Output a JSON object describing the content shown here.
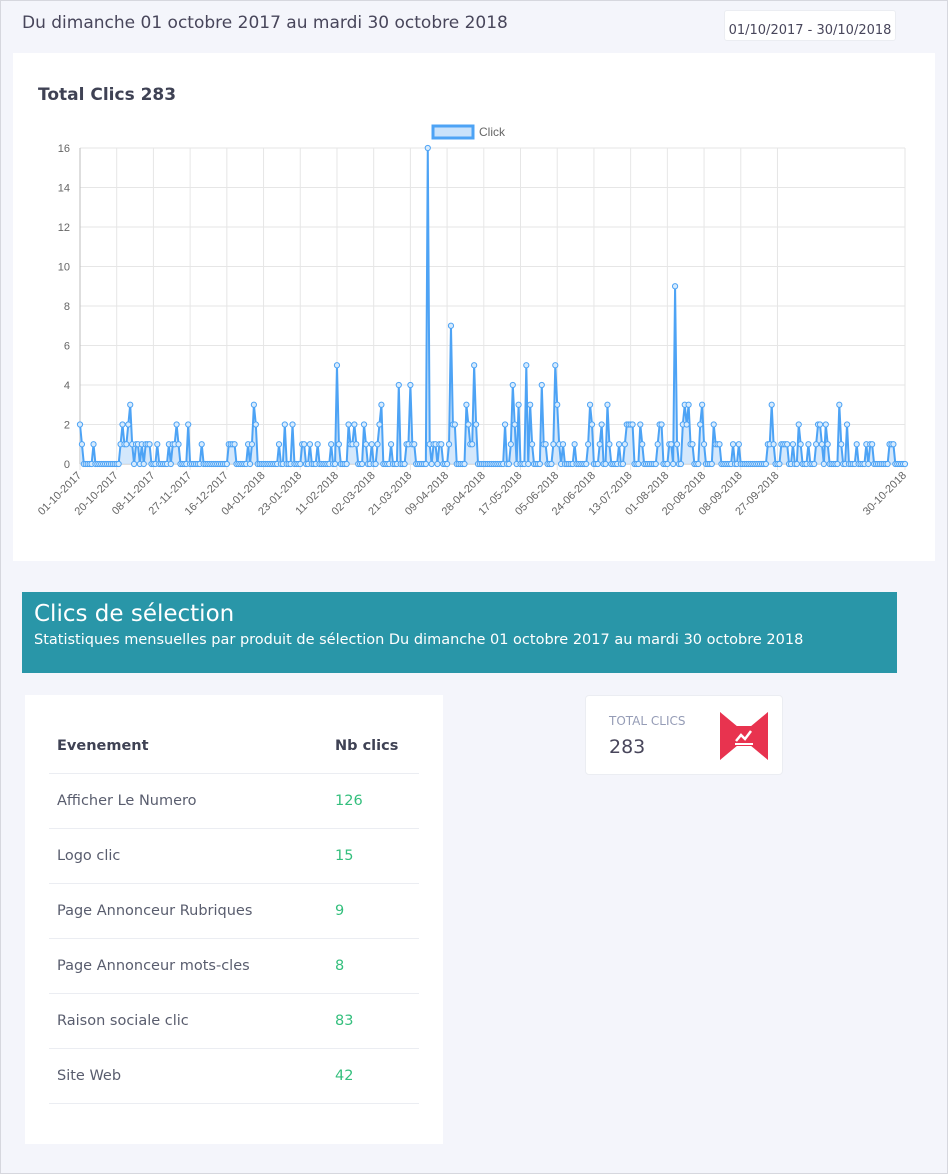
{
  "header": {
    "title": "Du dimanche 01 octobre 2017 au mardi 30 octobre 2018",
    "date_range": "01/10/2017 - 30/10/2018"
  },
  "chart_card": {
    "title": "Total Clics 283"
  },
  "chart_data": {
    "type": "line",
    "legend": {
      "label": "Click",
      "position": "top"
    },
    "ylim": [
      0,
      16
    ],
    "yticks": [
      0,
      2,
      4,
      6,
      8,
      10,
      12,
      14,
      16
    ],
    "x_tick_labels": [
      "01-10-2017",
      "20-10-2017",
      "08-11-2017",
      "27-11-2017",
      "16-12-2017",
      "04-01-2018",
      "23-01-2018",
      "11-02-2018",
      "02-03-2018",
      "21-03-2018",
      "09-04-2018",
      "28-04-2018",
      "17-05-2018",
      "05-06-2018",
      "24-06-2018",
      "13-07-2018",
      "01-08-2018",
      "20-08-2018",
      "08-09-2018",
      "27-09-2018",
      "30-10-2018"
    ],
    "grid": true,
    "colors": {
      "line": "#4da3f5",
      "fill": "#c9e2fb"
    },
    "series": [
      {
        "name": "Click",
        "x_start": "01-10-2017",
        "x_end": "30-10-2018",
        "values": [
          2,
          1,
          0,
          0,
          0,
          0,
          0,
          1,
          0,
          0,
          0,
          0,
          0,
          0,
          0,
          0,
          0,
          0,
          0,
          0,
          0,
          1,
          2,
          1,
          1,
          2,
          3,
          1,
          0,
          1,
          1,
          0,
          1,
          0,
          1,
          1,
          1,
          0,
          0,
          0,
          1,
          0,
          0,
          0,
          0,
          0,
          1,
          0,
          1,
          1,
          2,
          1,
          0,
          0,
          0,
          0,
          2,
          0,
          0,
          0,
          0,
          0,
          0,
          1,
          0,
          0,
          0,
          0,
          0,
          0,
          0,
          0,
          0,
          0,
          0,
          0,
          0,
          1,
          1,
          1,
          1,
          0,
          0,
          0,
          0,
          0,
          0,
          1,
          0,
          1,
          3,
          2,
          0,
          0,
          0,
          0,
          0,
          0,
          0,
          0,
          0,
          0,
          0,
          1,
          0,
          0,
          2,
          0,
          0,
          0,
          2,
          0,
          0,
          0,
          0,
          1,
          1,
          0,
          0,
          1,
          0,
          0,
          0,
          1,
          0,
          0,
          0,
          0,
          0,
          0,
          1,
          0,
          0,
          5,
          1,
          0,
          0,
          0,
          0,
          2,
          1,
          1,
          2,
          1,
          0,
          0,
          0,
          2,
          1,
          0,
          0,
          1,
          0,
          0,
          1,
          2,
          3,
          0,
          0,
          0,
          0,
          1,
          0,
          0,
          0,
          4,
          0,
          0,
          0,
          1,
          1,
          4,
          1,
          1,
          0,
          0,
          0,
          0,
          0,
          0,
          16,
          1,
          0,
          1,
          1,
          0,
          1,
          1,
          0,
          0,
          0,
          1,
          7,
          2,
          2,
          0,
          0,
          0,
          0,
          0,
          3,
          2,
          1,
          1,
          5,
          2,
          0,
          0,
          0,
          0,
          0,
          0,
          0,
          0,
          0,
          0,
          0,
          0,
          0,
          0,
          2,
          0,
          0,
          1,
          4,
          2,
          0,
          3,
          0,
          0,
          0,
          5,
          0,
          3,
          1,
          0,
          0,
          0,
          0,
          4,
          1,
          1,
          0,
          0,
          0,
          1,
          5,
          3,
          1,
          0,
          1,
          0,
          0,
          0,
          0,
          0,
          1,
          0,
          0,
          0,
          0,
          0,
          0,
          1,
          3,
          2,
          0,
          0,
          0,
          1,
          2,
          0,
          0,
          3,
          1,
          0,
          0,
          0,
          0,
          1,
          0,
          0,
          1,
          2,
          2,
          2,
          2,
          0,
          0,
          0,
          2,
          1,
          0,
          0,
          0,
          0,
          0,
          0,
          0,
          1,
          2,
          2,
          0,
          0,
          0,
          1,
          1,
          0,
          9,
          1,
          0,
          0,
          2,
          3,
          2,
          3,
          1,
          1,
          0,
          0,
          0,
          2,
          3,
          1,
          0,
          0,
          0,
          0,
          2,
          1,
          1,
          1,
          0,
          0,
          0,
          0,
          0,
          0,
          1,
          0,
          0,
          1,
          0,
          0,
          0,
          0,
          0,
          0,
          0,
          0,
          0,
          0,
          0,
          0,
          0,
          0,
          1,
          1,
          3,
          1,
          0,
          0,
          0,
          1,
          1,
          1,
          1,
          0,
          0,
          1,
          0,
          0,
          2,
          1,
          0,
          0,
          0,
          1,
          0,
          0,
          0,
          1,
          2,
          2,
          1,
          0,
          2,
          1,
          0,
          0,
          0,
          0,
          0,
          3,
          1,
          0,
          0,
          2,
          0,
          0,
          0,
          0,
          1,
          0,
          0,
          0,
          0,
          1,
          0,
          1,
          1,
          0,
          0,
          0,
          0,
          0,
          0,
          0,
          0,
          1,
          1,
          1,
          0,
          0,
          0,
          0,
          0,
          0
        ]
      }
    ]
  },
  "section": {
    "title": "Clics de sélection",
    "subtitle": "Statistiques mensuelles par produit de sélection Du dimanche 01 octobre 2017 au mardi 30 octobre 2018"
  },
  "table": {
    "headers": [
      "Evenement",
      "Nb clics"
    ],
    "rows": [
      {
        "name": "Afficher Le Numero",
        "count": "126"
      },
      {
        "name": "Logo clic",
        "count": "15"
      },
      {
        "name": "Page Annonceur Rubriques",
        "count": "9"
      },
      {
        "name": "Page Annonceur mots-cles",
        "count": "8"
      },
      {
        "name": "Raison sociale clic",
        "count": "83"
      },
      {
        "name": "Site Web",
        "count": "42"
      }
    ]
  },
  "total_card": {
    "label": "TOTAL CLICS",
    "value": "283",
    "icon": "chart-stats-icon",
    "icon_color": "#e8334f"
  }
}
